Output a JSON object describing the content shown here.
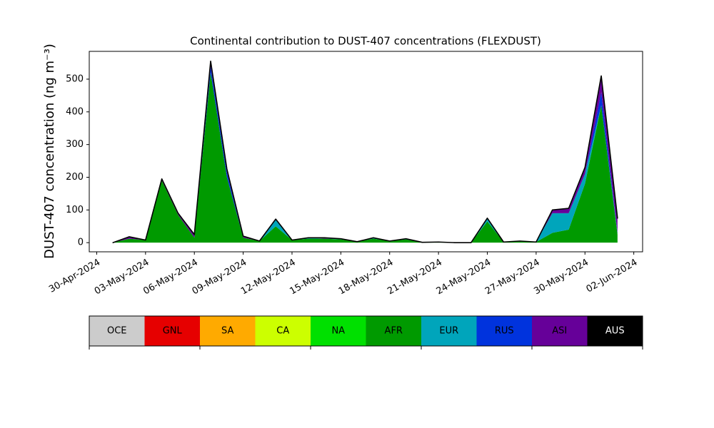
{
  "chart_data": {
    "type": "stacked-area",
    "title": "Continental contribution to DUST-407 concentrations (FLEXDUST)",
    "y_label": "DUST-407 concentration (ng m⁻³)",
    "x": [
      "01-May-2024",
      "02-May-2024",
      "03-May-2024",
      "04-May-2024",
      "05-May-2024",
      "06-May-2024",
      "07-May-2024",
      "08-May-2024",
      "09-May-2024",
      "10-May-2024",
      "11-May-2024",
      "12-May-2024",
      "13-May-2024",
      "14-May-2024",
      "15-May-2024",
      "16-May-2024",
      "17-May-2024",
      "18-May-2024",
      "19-May-2024",
      "20-May-2024",
      "21-May-2024",
      "22-May-2024",
      "23-May-2024",
      "24-May-2024",
      "25-May-2024",
      "26-May-2024",
      "27-May-2024",
      "28-May-2024",
      "29-May-2024",
      "30-May-2024",
      "31-May-2024",
      "01-Jun-2024"
    ],
    "series": [
      {
        "name": "OCE",
        "color": "#cccccc",
        "values": [
          0,
          0,
          0,
          0,
          0,
          0,
          0,
          0,
          0,
          0,
          0,
          0,
          0,
          0,
          0,
          0,
          0,
          0,
          0,
          0,
          0,
          0,
          0,
          0,
          0,
          0,
          0,
          0,
          0,
          0,
          0,
          0
        ]
      },
      {
        "name": "GNL",
        "color": "#e60000",
        "values": [
          0,
          0,
          0,
          0,
          0,
          0,
          0,
          0,
          0,
          0,
          0,
          0,
          0,
          0,
          0,
          0,
          0,
          0,
          0,
          0,
          0,
          0,
          0,
          0,
          0,
          0,
          0,
          0,
          0,
          0,
          0,
          0
        ]
      },
      {
        "name": "SA",
        "color": "#ffaa00",
        "values": [
          0,
          0,
          0,
          0,
          0,
          0,
          0,
          0,
          0,
          0,
          0,
          0,
          0,
          0,
          0,
          0,
          0,
          0,
          0,
          0,
          0,
          0,
          0,
          0,
          0,
          0,
          0,
          0,
          0,
          0,
          0,
          0
        ]
      },
      {
        "name": "CA",
        "color": "#ccff00",
        "values": [
          0,
          0,
          0,
          0,
          0,
          0,
          0,
          0,
          0,
          0,
          0,
          0,
          0,
          0,
          0,
          0,
          0,
          0,
          0,
          0,
          0,
          0,
          0,
          0,
          0,
          0,
          0,
          0,
          0,
          0,
          0,
          0
        ]
      },
      {
        "name": "NA",
        "color": "#00e000",
        "values": [
          0,
          0,
          0,
          0,
          0,
          0,
          0,
          0,
          0,
          0,
          0,
          0,
          0,
          0,
          0,
          0,
          0,
          0,
          0,
          0,
          0,
          0,
          0,
          0,
          0,
          0,
          0,
          0,
          0,
          0,
          0,
          0
        ]
      },
      {
        "name": "AFR",
        "color": "#009a00",
        "values": [
          0,
          12,
          8,
          190,
          85,
          15,
          520,
          200,
          15,
          5,
          50,
          8,
          12,
          12,
          10,
          3,
          12,
          5,
          10,
          1,
          2,
          0,
          0,
          65,
          2,
          4,
          2,
          30,
          40,
          180,
          420,
          25
        ]
      },
      {
        "name": "EUR",
        "color": "#00a5bb",
        "values": [
          0,
          0,
          0,
          0,
          0,
          0,
          0,
          0,
          0,
          0,
          22,
          0,
          3,
          0,
          2,
          0,
          3,
          0,
          2,
          0,
          0,
          0,
          0,
          10,
          0,
          1,
          0,
          60,
          50,
          30,
          0,
          5
        ]
      },
      {
        "name": "RUS",
        "color": "#0033dd",
        "values": [
          0,
          0,
          0,
          0,
          0,
          0,
          20,
          15,
          0,
          0,
          0,
          0,
          0,
          0,
          0,
          0,
          0,
          0,
          0,
          0,
          0,
          0,
          0,
          0,
          0,
          0,
          0,
          0,
          0,
          0,
          40,
          0
        ]
      },
      {
        "name": "ASI",
        "color": "#660099",
        "values": [
          0,
          6,
          0,
          5,
          5,
          10,
          15,
          10,
          5,
          0,
          0,
          0,
          0,
          3,
          0,
          0,
          0,
          0,
          0,
          0,
          0,
          0,
          0,
          0,
          0,
          0,
          0,
          10,
          15,
          20,
          50,
          45
        ]
      },
      {
        "name": "AUS",
        "color": "#000000",
        "values": [
          0,
          0,
          0,
          0,
          0,
          0,
          0,
          0,
          0,
          0,
          0,
          0,
          0,
          0,
          0,
          0,
          0,
          0,
          0,
          0,
          0,
          0,
          0,
          0,
          0,
          0,
          0,
          0,
          0,
          0,
          0,
          0
        ]
      }
    ],
    "xlim": [
      "2024-04-29T13:00",
      "2024-06-02T13:00"
    ],
    "xticks": [
      "30-Apr-2024",
      "03-May-2024",
      "06-May-2024",
      "09-May-2024",
      "12-May-2024",
      "15-May-2024",
      "18-May-2024",
      "21-May-2024",
      "24-May-2024",
      "27-May-2024",
      "30-May-2024",
      "02-Jun-2024"
    ],
    "ylim": [
      -28,
      585
    ],
    "yticks": [
      0,
      100,
      200,
      300,
      400,
      500
    ]
  }
}
